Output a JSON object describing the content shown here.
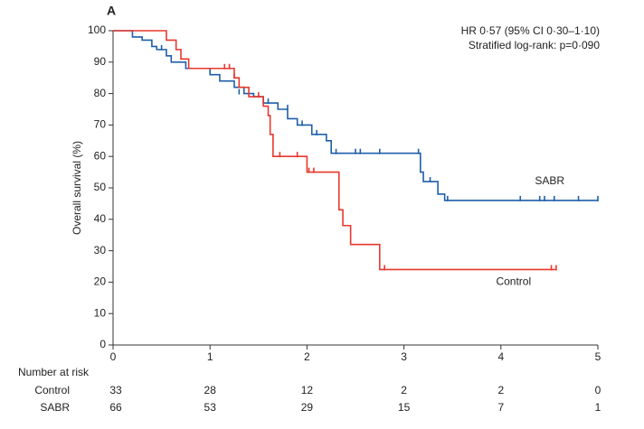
{
  "chart_data": {
    "type": "step",
    "panel_label": "A",
    "ylabel": "Overall survival (%)",
    "annotations": [
      "HR 0·57 (95% CI 0·30–1·10)",
      "Stratified log-rank: p=0·090"
    ],
    "xlim": [
      0,
      5
    ],
    "xticks": [
      0,
      1,
      2,
      3,
      4,
      5
    ],
    "ylim": [
      0,
      100
    ],
    "yticks": [
      0,
      10,
      20,
      30,
      40,
      50,
      60,
      70,
      80,
      90,
      100
    ],
    "series": [
      {
        "name": "SABR",
        "color": "#1f5fa8",
        "x": [
          0,
          0.2,
          0.3,
          0.4,
          0.45,
          0.55,
          0.6,
          0.75,
          1.0,
          1.1,
          1.25,
          1.35,
          1.45,
          1.55,
          1.7,
          1.8,
          1.9,
          2.05,
          2.2,
          2.25,
          3.15,
          3.17,
          3.2,
          3.35,
          3.42,
          5.0
        ],
        "values": [
          100,
          98,
          97,
          95,
          94,
          92,
          90,
          88,
          86,
          84,
          82,
          80,
          79,
          77,
          75,
          72,
          70,
          67,
          65,
          61,
          61,
          55,
          52,
          48,
          46,
          46
        ],
        "censored": {
          "x": [
            0.5,
            1.3,
            1.55,
            1.6,
            1.8,
            1.95,
            2.1,
            2.3,
            2.5,
            2.55,
            2.75,
            3.15,
            3.27,
            3.45,
            4.2,
            4.4,
            4.45,
            4.55,
            4.8,
            5.0
          ],
          "values": [
            94,
            80,
            77,
            77,
            75,
            70,
            67,
            61,
            61,
            61,
            61,
            61,
            52,
            46,
            46,
            46,
            46,
            46,
            46,
            46
          ]
        }
      },
      {
        "name": "Control",
        "color": "#e8382e",
        "x": [
          0,
          0.55,
          0.65,
          0.7,
          0.78,
          1.25,
          1.3,
          1.4,
          1.55,
          1.6,
          1.62,
          1.65,
          2.0,
          2.33,
          2.37,
          2.45,
          2.75,
          4.57
        ],
        "values": [
          100,
          97,
          94,
          91,
          88,
          85,
          82,
          79,
          76,
          73,
          67,
          60,
          55,
          43,
          38,
          32,
          24,
          24
        ],
        "censored": {
          "x": [
            1.15,
            1.2,
            1.25,
            1.5,
            1.72,
            1.9,
            2.02,
            2.07,
            2.8,
            4.52,
            4.57
          ],
          "values": [
            88,
            88,
            85,
            79,
            60,
            60,
            55,
            55,
            24,
            24,
            24
          ]
        }
      }
    ],
    "risk_table": {
      "title": "Number at risk",
      "rows": [
        {
          "name": "Control",
          "values": [
            33,
            28,
            12,
            2,
            2,
            0
          ]
        },
        {
          "name": "SABR",
          "values": [
            66,
            53,
            29,
            15,
            7,
            1
          ]
        }
      ]
    }
  }
}
